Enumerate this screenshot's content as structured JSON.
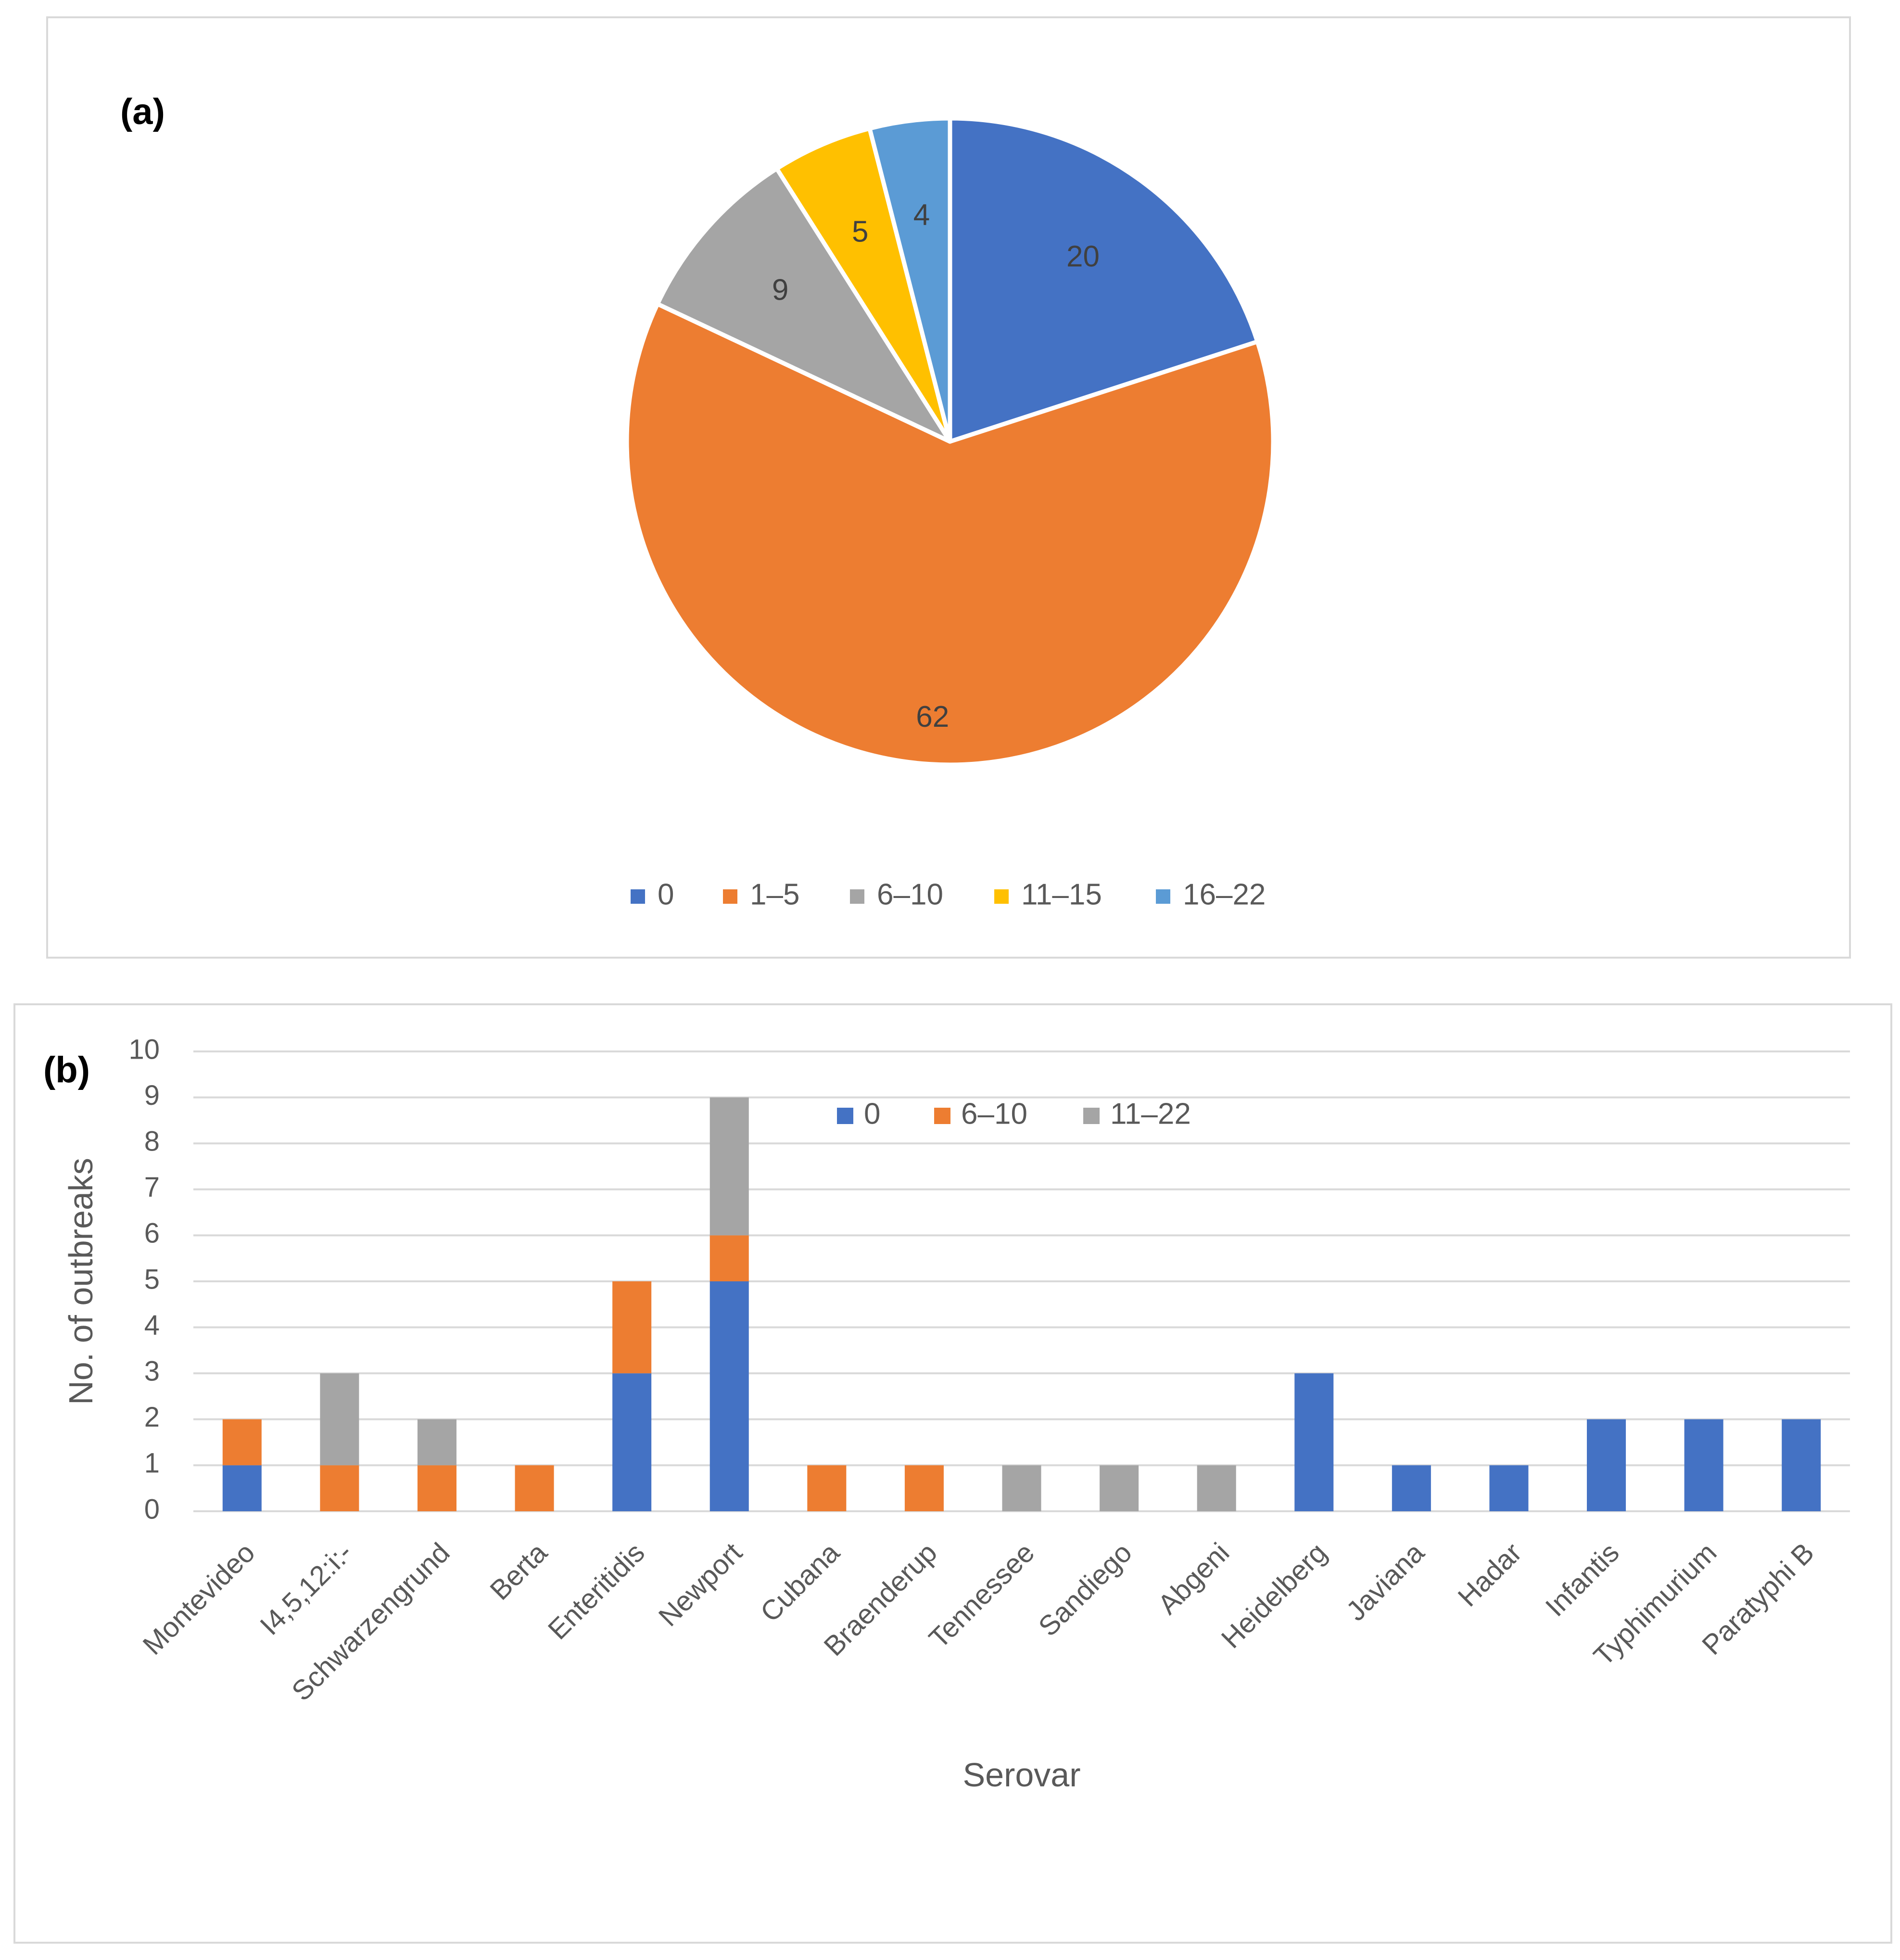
{
  "chart_data": [
    {
      "type": "pie",
      "panel_label": "(a)",
      "title": "",
      "categories": [
        "0",
        "1–5",
        "6–10",
        "11–15",
        "16–22"
      ],
      "values": [
        20,
        62,
        9,
        5,
        4
      ],
      "colors": [
        "#4472C4",
        "#ED7D31",
        "#A5A5A5",
        "#FFC000",
        "#5B9BD5"
      ],
      "legend_position": "bottom"
    },
    {
      "type": "bar",
      "stacked": true,
      "panel_label": "(b)",
      "title": "",
      "xlabel": "Serovar",
      "ylabel": "No. of outbreaks",
      "ylim": [
        0,
        10
      ],
      "yticks": [
        "0",
        "1",
        "2",
        "3",
        "4",
        "5",
        "6",
        "7",
        "8",
        "9",
        "10"
      ],
      "categories": [
        "Montevideo",
        "I4,5,12:i:-",
        "Schwarzengrund",
        "Berta",
        "Enteritidis",
        "Newport",
        "Cubana",
        "Braenderup",
        "Tennessee",
        "Sandiego",
        "Abgeni",
        "Heidelberg",
        "Javiana",
        "Hadar",
        "Infantis",
        "Typhimurium",
        "Paratyphi B"
      ],
      "series": [
        {
          "name": "0",
          "color": "#4472C4",
          "values": [
            1,
            0,
            0,
            0,
            3,
            5,
            0,
            0,
            0,
            0,
            0,
            3,
            1,
            1,
            2,
            2,
            2
          ]
        },
        {
          "name": "6–10",
          "color": "#ED7D31",
          "values": [
            1,
            1,
            1,
            1,
            2,
            1,
            1,
            1,
            0,
            0,
            0,
            0,
            0,
            0,
            0,
            0,
            0
          ]
        },
        {
          "name": "11–22",
          "color": "#A5A5A5",
          "values": [
            0,
            2,
            1,
            0,
            0,
            3,
            0,
            0,
            1,
            1,
            1,
            0,
            0,
            0,
            0,
            0,
            0
          ]
        }
      ],
      "legend_position": "top-center",
      "grid": true
    }
  ]
}
